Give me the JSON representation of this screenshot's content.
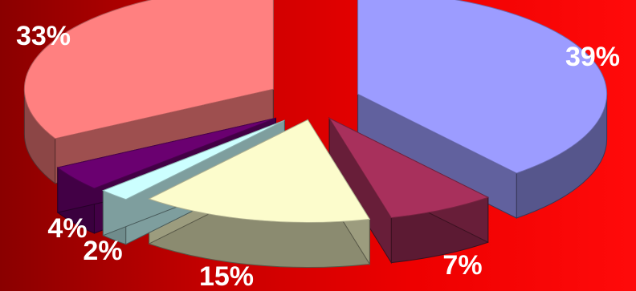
{
  "chart_data": {
    "type": "pie",
    "style": "3d-exploded",
    "categories": [
      "",
      "",
      "",
      "",
      "",
      ""
    ],
    "values": [
      39,
      7,
      15,
      2,
      4,
      33
    ],
    "labels": [
      "39%",
      "7%",
      "15%",
      "2%",
      "4%",
      "33%"
    ],
    "colors": [
      "#9c9cff",
      "#a8305c",
      "#fcfccc",
      "#ccffff",
      "#6a0070",
      "#ff8080"
    ],
    "legend": "none",
    "title": ""
  }
}
